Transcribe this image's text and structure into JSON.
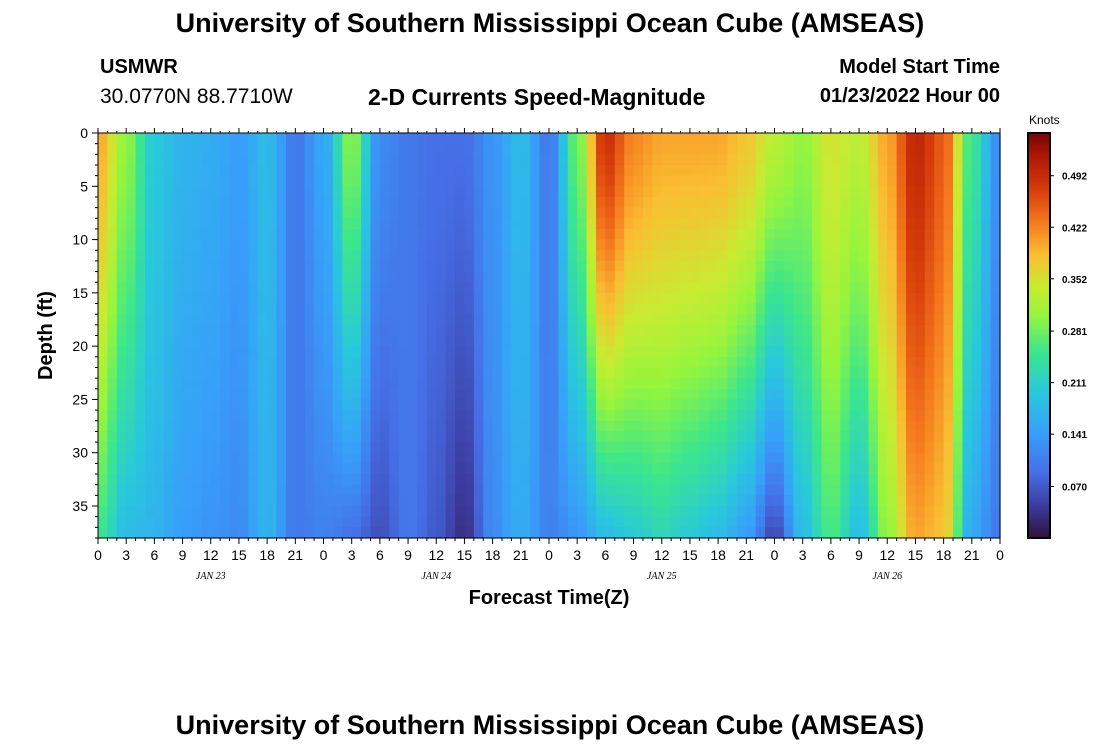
{
  "page": {
    "title": "University of Southern Mississippi Ocean Cube (AMSEAS)",
    "station": "USMWR",
    "coords": "30.0770N  88.7710W",
    "subtitle": "2-D Currents Speed-Magnitude",
    "start_label": "Model Start Time",
    "start_value": "01/23/2022 Hour 00",
    "bottom_title": "University of Southern Mississippi Ocean Cube (AMSEAS)"
  },
  "chart_data": {
    "type": "heatmap",
    "title": "2-D Currents Speed-Magnitude",
    "xlabel": "Forecast Time(Z)",
    "ylabel": "Depth (ft)",
    "x_hours_range": [
      0,
      96
    ],
    "ylim": [
      0,
      38
    ],
    "y_ticks": [
      "0",
      "5",
      "10",
      "15",
      "20",
      "25",
      "30",
      "35"
    ],
    "x_tick_labels": [
      "0",
      "3",
      "6",
      "9",
      "12",
      "15",
      "18",
      "21",
      "0",
      "3",
      "6",
      "9",
      "12",
      "15",
      "18",
      "21",
      "0",
      "3",
      "6",
      "9",
      "12",
      "15",
      "18",
      "21",
      "0",
      "3",
      "6",
      "9",
      "12",
      "15",
      "18",
      "21",
      "0"
    ],
    "date_labels": [
      "JAN 23",
      "JAN 24",
      "JAN 25",
      "JAN 26"
    ],
    "colorbar": {
      "unit": "Knots",
      "range": [
        0,
        0.55
      ],
      "tick_values": [
        0.492,
        0.422,
        0.352,
        0.281,
        0.211,
        0.141,
        0.07
      ],
      "tick_labels": [
        "0.492",
        "0.422",
        "0.352",
        "0.281",
        "0.211",
        "0.141",
        "0.070"
      ]
    },
    "speed_anchors_knots": [
      {
        "hour": 0,
        "surface": 0.4,
        "bottom": 0.25
      },
      {
        "hour": 3,
        "surface": 0.3,
        "bottom": 0.18
      },
      {
        "hour": 6,
        "surface": 0.2,
        "bottom": 0.17
      },
      {
        "hour": 9,
        "surface": 0.17,
        "bottom": 0.14
      },
      {
        "hour": 12,
        "surface": 0.16,
        "bottom": 0.13
      },
      {
        "hour": 15,
        "surface": 0.14,
        "bottom": 0.12
      },
      {
        "hour": 18,
        "surface": 0.18,
        "bottom": 0.17
      },
      {
        "hour": 21,
        "surface": 0.1,
        "bottom": 0.1
      },
      {
        "hour": 24,
        "surface": 0.15,
        "bottom": 0.11
      },
      {
        "hour": 27,
        "surface": 0.3,
        "bottom": 0.09
      },
      {
        "hour": 30,
        "surface": 0.12,
        "bottom": 0.06
      },
      {
        "hour": 33,
        "surface": 0.1,
        "bottom": 0.1
      },
      {
        "hour": 36,
        "surface": 0.09,
        "bottom": 0.07
      },
      {
        "hour": 39,
        "surface": 0.09,
        "bottom": 0.03
      },
      {
        "hour": 42,
        "surface": 0.13,
        "bottom": 0.12
      },
      {
        "hour": 45,
        "surface": 0.18,
        "bottom": 0.16
      },
      {
        "hour": 48,
        "surface": 0.1,
        "bottom": 0.11
      },
      {
        "hour": 51,
        "surface": 0.28,
        "bottom": 0.13
      },
      {
        "hour": 54,
        "surface": 0.49,
        "bottom": 0.18
      },
      {
        "hour": 57,
        "surface": 0.42,
        "bottom": 0.2
      },
      {
        "hour": 60,
        "surface": 0.4,
        "bottom": 0.22
      },
      {
        "hour": 63,
        "surface": 0.4,
        "bottom": 0.2
      },
      {
        "hour": 66,
        "surface": 0.4,
        "bottom": 0.18
      },
      {
        "hour": 69,
        "surface": 0.38,
        "bottom": 0.14
      },
      {
        "hour": 72,
        "surface": 0.33,
        "bottom": 0.05
      },
      {
        "hour": 75,
        "surface": 0.3,
        "bottom": 0.18
      },
      {
        "hour": 78,
        "surface": 0.35,
        "bottom": 0.26
      },
      {
        "hour": 81,
        "surface": 0.33,
        "bottom": 0.18
      },
      {
        "hour": 84,
        "surface": 0.4,
        "bottom": 0.3
      },
      {
        "hour": 87,
        "surface": 0.5,
        "bottom": 0.4
      },
      {
        "hour": 90,
        "surface": 0.45,
        "bottom": 0.38
      },
      {
        "hour": 93,
        "surface": 0.25,
        "bottom": 0.15
      },
      {
        "hour": 96,
        "surface": 0.12,
        "bottom": 0.1
      }
    ]
  }
}
